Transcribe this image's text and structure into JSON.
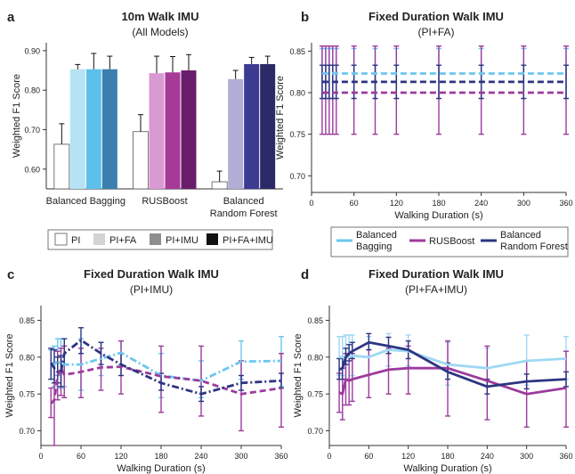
{
  "panels": {
    "a": {
      "letter": "a",
      "title": "10m Walk IMU",
      "subtitle": "(All Models)"
    },
    "b": {
      "letter": "b",
      "title": "Fixed Duration Walk IMU",
      "subtitle": "(PI+FA)"
    },
    "c": {
      "letter": "c",
      "title": "Fixed Duration Walk IMU",
      "subtitle": "(PI+IMU)"
    },
    "d": {
      "letter": "d",
      "title": "Fixed Duration Walk IMU",
      "subtitle": "(PI+FA+IMU)"
    }
  },
  "legend_a": [
    {
      "label": "PI",
      "color": "#ffffff"
    },
    {
      "label": "PI+FA",
      "color": "#d4d4d4"
    },
    {
      "label": "PI+IMU",
      "color": "#8e8e8e"
    },
    {
      "label": "PI+FA+IMU",
      "color": "#111111"
    }
  ],
  "legend_b": [
    {
      "label": "Balanced Bagging",
      "color": "#6cc7ee"
    },
    {
      "label": "RUSBoost",
      "color": "#9c3a9c"
    },
    {
      "label": "Balanced Random Forest",
      "color": "#2d3582"
    }
  ],
  "chart_data": [
    {
      "panel": "a",
      "type": "bar",
      "title": "10m Walk IMU",
      "subtitle": "(All Models)",
      "ylabel": "Weighted F1 Score",
      "ylim": [
        0.55,
        0.92
      ],
      "yticks": [
        "0.60",
        "0.70",
        "0.80",
        "0.90"
      ],
      "categories": [
        "Balanced Bagging",
        "RUSBoost",
        "Balanced Random Forest"
      ],
      "series": [
        {
          "name": "PI",
          "values": [
            0.663,
            0.695,
            0.568
          ],
          "errors": [
            0.052,
            0.043,
            0.027
          ],
          "colors": [
            "#ffffff",
            "#ffffff",
            "#ffffff"
          ]
        },
        {
          "name": "PI+FA",
          "values": [
            0.853,
            0.843,
            0.828
          ],
          "errors": [
            0.012,
            0.043,
            0.022
          ],
          "colors": [
            "#b6e3f4",
            "#d99ad3",
            "#b1aed6"
          ]
        },
        {
          "name": "PI+IMU",
          "values": [
            0.853,
            0.845,
            0.866
          ],
          "errors": [
            0.04,
            0.04,
            0.017
          ],
          "colors": [
            "#5ec0ea",
            "#a63a97",
            "#3b3b92"
          ]
        },
        {
          "name": "PI+FA+IMU",
          "values": [
            0.853,
            0.85,
            0.866
          ],
          "errors": [
            0.033,
            0.04,
            0.02
          ],
          "colors": [
            "#3a7fb0",
            "#6a1d6a",
            "#2b2a66"
          ]
        }
      ],
      "legend": "bottom"
    },
    {
      "panel": "b",
      "type": "line",
      "title": "Fixed Duration Walk IMU",
      "subtitle": "(PI+FA)",
      "xlabel": "Walking Duration (s)",
      "ylabel": "Weighted F1 Score",
      "xlim": [
        0,
        360
      ],
      "ylim": [
        0.68,
        0.86
      ],
      "xticks": [
        0,
        60,
        120,
        180,
        240,
        300,
        360
      ],
      "yticks": [
        "0.70",
        "0.75",
        "0.80",
        "0.85"
      ],
      "x": [
        15,
        20,
        25,
        30,
        35,
        60,
        90,
        120,
        180,
        240,
        300,
        360
      ],
      "series": [
        {
          "name": "Balanced Bagging",
          "color": "#6cc7ee",
          "dash": "dashed",
          "values": [
            0.823,
            0.823,
            0.823,
            0.823,
            0.823,
            0.823,
            0.823,
            0.823,
            0.823,
            0.823,
            0.823,
            0.823
          ],
          "lower": [
            0.793,
            0.793,
            0.793,
            0.793,
            0.793,
            0.793,
            0.793,
            0.793,
            0.793,
            0.793,
            0.793,
            0.793
          ],
          "upper": [
            0.853,
            0.853,
            0.853,
            0.853,
            0.853,
            0.853,
            0.853,
            0.853,
            0.853,
            0.853,
            0.853,
            0.853
          ]
        },
        {
          "name": "RUSBoost",
          "color": "#9c3a9c",
          "dash": "dashed",
          "values": [
            0.8,
            0.8,
            0.8,
            0.8,
            0.8,
            0.8,
            0.8,
            0.8,
            0.8,
            0.8,
            0.8,
            0.8
          ],
          "lower": [
            0.75,
            0.75,
            0.75,
            0.75,
            0.75,
            0.75,
            0.75,
            0.75,
            0.75,
            0.75,
            0.75,
            0.75
          ],
          "upper": [
            0.856,
            0.856,
            0.856,
            0.856,
            0.856,
            0.856,
            0.856,
            0.856,
            0.856,
            0.856,
            0.856,
            0.856
          ]
        },
        {
          "name": "Balanced Random Forest",
          "color": "#2d3582",
          "dash": "dashed",
          "values": [
            0.813,
            0.813,
            0.813,
            0.813,
            0.813,
            0.813,
            0.813,
            0.813,
            0.813,
            0.813,
            0.813,
            0.813
          ],
          "lower": [
            0.793,
            0.793,
            0.793,
            0.793,
            0.793,
            0.793,
            0.793,
            0.793,
            0.793,
            0.793,
            0.793,
            0.793
          ],
          "upper": [
            0.833,
            0.833,
            0.833,
            0.833,
            0.833,
            0.833,
            0.833,
            0.833,
            0.833,
            0.833,
            0.833,
            0.833
          ]
        }
      ],
      "legend": "bottom"
    },
    {
      "panel": "c",
      "type": "line",
      "title": "Fixed Duration Walk IMU",
      "subtitle": "(PI+IMU)",
      "xlabel": "Walking Duration (s)",
      "ylabel": "Weighted F1 Score",
      "xlim": [
        0,
        360
      ],
      "ylim": [
        0.68,
        0.87
      ],
      "xticks": [
        0,
        60,
        120,
        180,
        240,
        300,
        360
      ],
      "yticks": [
        "0.70",
        "0.75",
        "0.80",
        "0.85"
      ],
      "x": [
        15,
        20,
        25,
        30,
        35,
        60,
        90,
        120,
        180,
        240,
        300,
        360
      ],
      "series": [
        {
          "name": "Balanced Bagging",
          "color": "#6cc7ee",
          "dash": "dashdot",
          "values": [
            0.79,
            0.79,
            0.795,
            0.79,
            0.79,
            0.79,
            0.798,
            0.806,
            0.775,
            0.768,
            0.794,
            0.795
          ],
          "lower": [
            0.77,
            0.76,
            0.775,
            0.758,
            0.76,
            0.755,
            0.775,
            0.79,
            0.745,
            0.745,
            0.77,
            0.76
          ],
          "upper": [
            0.81,
            0.815,
            0.825,
            0.825,
            0.825,
            0.825,
            0.82,
            0.822,
            0.805,
            0.795,
            0.822,
            0.828
          ]
        },
        {
          "name": "RUSBoost",
          "color": "#9c3a9c",
          "dash": "dashed",
          "values": [
            0.737,
            0.742,
            0.775,
            0.785,
            0.776,
            0.78,
            0.786,
            0.787,
            0.774,
            0.768,
            0.75,
            0.758
          ],
          "lower": [
            0.718,
            0.68,
            0.742,
            0.748,
            0.745,
            0.745,
            0.755,
            0.75,
            0.725,
            0.72,
            0.7,
            0.705
          ],
          "upper": [
            0.758,
            0.792,
            0.808,
            0.812,
            0.815,
            0.812,
            0.812,
            0.822,
            0.815,
            0.815,
            0.795,
            0.805
          ]
        },
        {
          "name": "Balanced Random Forest",
          "color": "#2d3582",
          "dash": "dashdot",
          "values": [
            0.792,
            0.785,
            0.78,
            0.78,
            0.805,
            0.823,
            0.805,
            0.79,
            0.765,
            0.75,
            0.765,
            0.768
          ],
          "lower": [
            0.77,
            0.765,
            0.765,
            0.76,
            0.79,
            0.805,
            0.79,
            0.775,
            0.755,
            0.74,
            0.755,
            0.758
          ],
          "upper": [
            0.812,
            0.81,
            0.8,
            0.802,
            0.825,
            0.84,
            0.82,
            0.805,
            0.778,
            0.76,
            0.775,
            0.778
          ]
        }
      ],
      "legend": "none"
    },
    {
      "panel": "d",
      "type": "line",
      "title": "Fixed Duration Walk IMU",
      "subtitle": "(PI+FA+IMU)",
      "xlabel": "Walking Duration (s)",
      "ylabel": "Weighted F1 Score",
      "xlim": [
        0,
        360
      ],
      "ylim": [
        0.68,
        0.87
      ],
      "xticks": [
        0,
        60,
        120,
        180,
        240,
        300,
        360
      ],
      "yticks": [
        "0.70",
        "0.75",
        "0.80",
        "0.85"
      ],
      "x": [
        15,
        20,
        25,
        30,
        35,
        60,
        90,
        120,
        180,
        240,
        300,
        360
      ],
      "series": [
        {
          "name": "Balanced Bagging",
          "color": "#9fd8f2",
          "dash": "solid",
          "values": [
            0.8,
            0.8,
            0.8,
            0.8,
            0.802,
            0.8,
            0.81,
            0.808,
            0.79,
            0.785,
            0.795,
            0.798
          ],
          "lower": [
            0.775,
            0.775,
            0.77,
            0.77,
            0.775,
            0.775,
            0.788,
            0.788,
            0.762,
            0.76,
            0.762,
            0.77
          ],
          "upper": [
            0.828,
            0.828,
            0.83,
            0.83,
            0.83,
            0.828,
            0.832,
            0.83,
            0.82,
            0.812,
            0.83,
            0.828
          ]
        },
        {
          "name": "RUSBoost",
          "color": "#9c3a9c",
          "dash": "solid",
          "values": [
            0.752,
            0.75,
            0.77,
            0.768,
            0.77,
            0.776,
            0.783,
            0.785,
            0.785,
            0.768,
            0.75,
            0.758
          ],
          "lower": [
            0.725,
            0.715,
            0.735,
            0.735,
            0.74,
            0.745,
            0.75,
            0.75,
            0.72,
            0.715,
            0.705,
            0.705
          ],
          "upper": [
            0.778,
            0.785,
            0.805,
            0.8,
            0.805,
            0.81,
            0.812,
            0.815,
            0.822,
            0.815,
            0.795,
            0.808
          ]
        },
        {
          "name": "Balanced Random Forest",
          "color": "#2d3582",
          "dash": "solid",
          "values": [
            0.783,
            0.785,
            0.8,
            0.805,
            0.808,
            0.82,
            0.815,
            0.81,
            0.78,
            0.76,
            0.767,
            0.77
          ],
          "lower": [
            0.77,
            0.77,
            0.79,
            0.795,
            0.798,
            0.81,
            0.805,
            0.798,
            0.77,
            0.75,
            0.757,
            0.76
          ],
          "upper": [
            0.798,
            0.8,
            0.812,
            0.817,
            0.82,
            0.832,
            0.827,
            0.822,
            0.792,
            0.77,
            0.777,
            0.78
          ]
        }
      ],
      "legend": "none"
    }
  ]
}
